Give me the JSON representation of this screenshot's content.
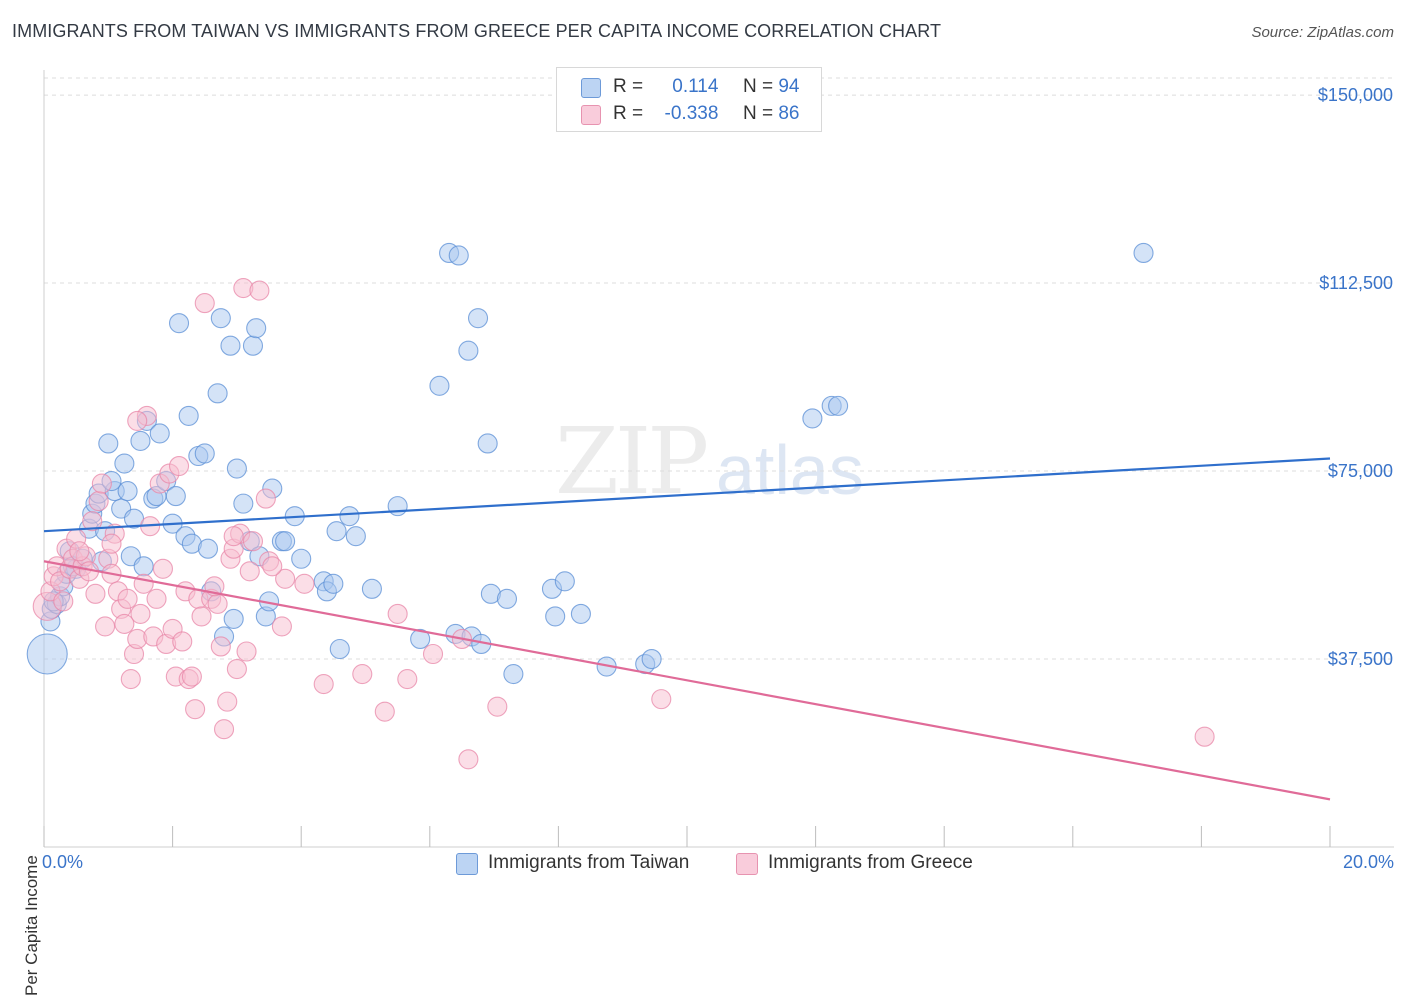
{
  "title": "IMMIGRANTS FROM TAIWAN VS IMMIGRANTS FROM GREECE PER CAPITA INCOME CORRELATION CHART",
  "source": "Source: ZipAtlas.com",
  "watermark": {
    "zip": "ZIP",
    "atlas": "atlas"
  },
  "legend": {
    "taiwan": {
      "r_label": "R =",
      "r_value": "0.114",
      "n_label": "N =",
      "n_value": "94"
    },
    "greece": {
      "r_label": "R =",
      "r_value": "-0.338",
      "n_label": "N =",
      "n_value": "86"
    }
  },
  "colors": {
    "taiwan_fill": "#a9c8ef",
    "taiwan_stroke": "#5b8fd6",
    "taiwan_line": "#2f6fcc",
    "greece_fill": "#f7bdd0",
    "greece_stroke": "#e887a8",
    "greece_line": "#e06b98",
    "axis_text": "#3a74c9",
    "grid": "#dcdcdc"
  },
  "chart_data": {
    "type": "scatter",
    "title": "IMMIGRANTS FROM TAIWAN VS IMMIGRANTS FROM GREECE PER CAPITA INCOME CORRELATION CHART",
    "xlabel": "",
    "ylabel": "Per Capita Income",
    "xlim": [
      0,
      20
    ],
    "ylim": [
      0,
      155000
    ],
    "x_tick_labels": [
      "0.0%",
      "20.0%"
    ],
    "y_ticks": [
      37500,
      75000,
      112500,
      150000
    ],
    "y_tick_labels": [
      "$37,500",
      "$75,000",
      "$112,500",
      "$150,000"
    ],
    "grid": true,
    "legend_position": "top-center",
    "series": [
      {
        "name": "Immigrants from Taiwan",
        "r": 0.114,
        "n": 94,
        "trend": {
          "x": [
            0,
            20
          ],
          "y": [
            63000,
            77500
          ]
        },
        "points": [
          [
            0.05,
            38500,
            "xl"
          ],
          [
            0.1,
            45000
          ],
          [
            0.12,
            47500
          ],
          [
            0.2,
            48500
          ],
          [
            0.25,
            50000
          ],
          [
            0.3,
            52000
          ],
          [
            0.35,
            54500
          ],
          [
            0.4,
            59000
          ],
          [
            0.5,
            55500
          ],
          [
            0.6,
            57500
          ],
          [
            0.7,
            63500
          ],
          [
            0.75,
            66500
          ],
          [
            0.8,
            68500
          ],
          [
            0.85,
            70500
          ],
          [
            0.9,
            57000
          ],
          [
            0.95,
            63000
          ],
          [
            1.0,
            80500
          ],
          [
            1.1,
            71000
          ],
          [
            1.2,
            67500
          ],
          [
            1.25,
            76500
          ],
          [
            1.3,
            71000
          ],
          [
            1.35,
            58000
          ],
          [
            1.4,
            65500
          ],
          [
            1.5,
            81000
          ],
          [
            1.55,
            56000
          ],
          [
            1.6,
            85000
          ],
          [
            1.7,
            69500
          ],
          [
            1.75,
            70000
          ],
          [
            1.8,
            82500
          ],
          [
            1.9,
            73000
          ],
          [
            2.0,
            64500
          ],
          [
            2.05,
            70000
          ],
          [
            2.1,
            104500
          ],
          [
            2.2,
            62000
          ],
          [
            2.25,
            86000
          ],
          [
            2.3,
            60500
          ],
          [
            2.4,
            78000
          ],
          [
            2.5,
            78500
          ],
          [
            2.55,
            59500
          ],
          [
            2.6,
            51000
          ],
          [
            2.7,
            90500
          ],
          [
            2.75,
            105500
          ],
          [
            2.8,
            42000
          ],
          [
            2.9,
            100000
          ],
          [
            2.95,
            45500
          ],
          [
            3.0,
            75500
          ],
          [
            3.1,
            68500
          ],
          [
            3.2,
            61000
          ],
          [
            3.25,
            100000
          ],
          [
            3.3,
            103500
          ],
          [
            3.35,
            58000
          ],
          [
            3.45,
            46000
          ],
          [
            3.5,
            49000
          ],
          [
            3.55,
            71500
          ],
          [
            3.7,
            61000
          ],
          [
            3.75,
            61000
          ],
          [
            4.0,
            57500
          ],
          [
            4.35,
            53000
          ],
          [
            4.4,
            51000
          ],
          [
            4.5,
            52500
          ],
          [
            4.55,
            63000
          ],
          [
            4.6,
            39500
          ],
          [
            4.75,
            66000
          ],
          [
            4.85,
            62000
          ],
          [
            5.1,
            51500
          ],
          [
            5.5,
            68000
          ],
          [
            5.85,
            41500
          ],
          [
            6.15,
            92000
          ],
          [
            6.3,
            118500
          ],
          [
            6.4,
            42500
          ],
          [
            6.45,
            118000
          ],
          [
            6.6,
            99000
          ],
          [
            6.65,
            42000
          ],
          [
            6.75,
            105500
          ],
          [
            6.8,
            40500
          ],
          [
            6.9,
            80500
          ],
          [
            6.95,
            50500
          ],
          [
            7.2,
            49500
          ],
          [
            7.3,
            34500
          ],
          [
            7.9,
            51500
          ],
          [
            7.95,
            46000
          ],
          [
            8.1,
            53000
          ],
          [
            8.35,
            46500
          ],
          [
            8.75,
            36000
          ],
          [
            9.35,
            36500
          ],
          [
            9.45,
            37500
          ],
          [
            11.95,
            85500
          ],
          [
            12.25,
            88000
          ],
          [
            12.35,
            88000
          ],
          [
            17.1,
            118500
          ],
          [
            0.15,
            49000
          ],
          [
            0.45,
            56000
          ],
          [
            1.05,
            73000
          ],
          [
            3.9,
            66000
          ]
        ]
      },
      {
        "name": "Immigrants from Greece",
        "r": -0.338,
        "n": 86,
        "trend": {
          "x": [
            0,
            20
          ],
          "y": [
            57000,
            9500
          ]
        },
        "points": [
          [
            0.05,
            48000,
            "lg"
          ],
          [
            0.1,
            51000
          ],
          [
            0.15,
            54000
          ],
          [
            0.2,
            56000
          ],
          [
            0.25,
            53000
          ],
          [
            0.3,
            49000
          ],
          [
            0.35,
            59500
          ],
          [
            0.4,
            55500
          ],
          [
            0.45,
            57500
          ],
          [
            0.5,
            61500
          ],
          [
            0.55,
            53500
          ],
          [
            0.6,
            56000
          ],
          [
            0.65,
            58000
          ],
          [
            0.7,
            55000
          ],
          [
            0.75,
            65000
          ],
          [
            0.8,
            50500
          ],
          [
            0.85,
            69000
          ],
          [
            0.9,
            72500
          ],
          [
            0.95,
            44000
          ],
          [
            1.0,
            57500
          ],
          [
            1.05,
            54500
          ],
          [
            1.1,
            62500
          ],
          [
            1.15,
            51000
          ],
          [
            1.2,
            47500
          ],
          [
            1.25,
            44500
          ],
          [
            1.3,
            49500
          ],
          [
            1.35,
            33500
          ],
          [
            1.4,
            38500
          ],
          [
            1.45,
            41500
          ],
          [
            1.5,
            46500
          ],
          [
            1.55,
            52500
          ],
          [
            1.6,
            86000
          ],
          [
            1.65,
            64000
          ],
          [
            1.7,
            42000
          ],
          [
            1.75,
            49500
          ],
          [
            1.8,
            72500
          ],
          [
            1.85,
            55500
          ],
          [
            1.9,
            40500
          ],
          [
            1.95,
            74500
          ],
          [
            2.0,
            43500
          ],
          [
            2.05,
            34000
          ],
          [
            2.1,
            76000
          ],
          [
            2.15,
            41000
          ],
          [
            2.2,
            51000
          ],
          [
            2.25,
            33500
          ],
          [
            2.3,
            34000
          ],
          [
            2.35,
            27500
          ],
          [
            2.4,
            49500
          ],
          [
            2.45,
            46000
          ],
          [
            2.5,
            108500
          ],
          [
            2.6,
            49500
          ],
          [
            2.7,
            48500
          ],
          [
            2.75,
            40000
          ],
          [
            2.8,
            23500
          ],
          [
            2.85,
            29000
          ],
          [
            2.9,
            57500
          ],
          [
            2.95,
            59500
          ],
          [
            3.0,
            35500
          ],
          [
            3.05,
            62500
          ],
          [
            3.1,
            111500
          ],
          [
            3.15,
            39000
          ],
          [
            3.2,
            55000
          ],
          [
            3.25,
            61000
          ],
          [
            3.35,
            111000
          ],
          [
            3.45,
            69500
          ],
          [
            3.5,
            57000
          ],
          [
            3.7,
            44000
          ],
          [
            3.75,
            53500
          ],
          [
            4.35,
            32500
          ],
          [
            4.95,
            34500
          ],
          [
            5.3,
            27000
          ],
          [
            5.5,
            46500
          ],
          [
            5.65,
            33500
          ],
          [
            6.05,
            38500
          ],
          [
            6.5,
            41500
          ],
          [
            6.6,
            17500
          ],
          [
            7.05,
            28000
          ],
          [
            9.6,
            29500
          ],
          [
            18.05,
            22000
          ],
          [
            0.55,
            59000
          ],
          [
            1.45,
            85000
          ],
          [
            2.95,
            62000
          ],
          [
            3.55,
            56000
          ],
          [
            4.05,
            52500
          ],
          [
            1.05,
            60500
          ],
          [
            2.65,
            52000
          ]
        ]
      }
    ]
  },
  "x_axis": {
    "left_label": "0.0%",
    "right_label": "20.0%"
  },
  "bottom_legend": {
    "taiwan": "Immigrants from Taiwan",
    "greece": "Immigrants from Greece"
  }
}
